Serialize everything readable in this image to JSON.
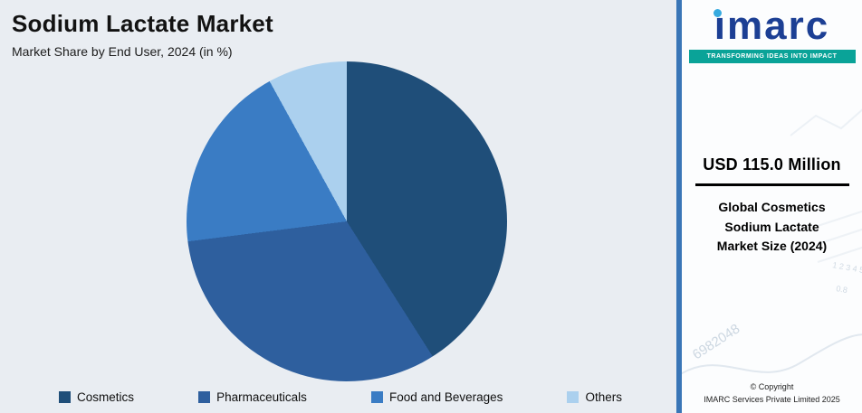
{
  "header": {
    "title": "Sodium Lactate Market",
    "subtitle": "Market Share by End User, 2024 (in %)"
  },
  "chart_data": {
    "type": "pie",
    "title": "Sodium Lactate Market",
    "subtitle": "Market Share by End User, 2024 (in %)",
    "categories": [
      "Cosmetics",
      "Pharmaceuticals",
      "Food and Beverages",
      "Others"
    ],
    "values": [
      41,
      32,
      19,
      8
    ],
    "unit": "%",
    "colors": [
      "#1f4e79",
      "#2e5f9e",
      "#3a7cc4",
      "#abd0ee"
    ],
    "start_angle": "top",
    "direction": "clockwise",
    "legend_position": "bottom"
  },
  "sidebar": {
    "logo_text": "imarc",
    "logo_tagline": "TRANSFORMING IDEAS INTO IMPACT",
    "metric_value": "USD 115.0 Million",
    "metric_label": "Global Cosmetics Sodium Lactate Market Size (2024)",
    "watermark": {
      "axis_numbers": "1 2 3 4 5",
      "axis_decimals": "0.8",
      "serial": "6982048"
    },
    "copyright_line1": "© Copyright",
    "copyright_line2": "IMARC Services Private Limited 2025"
  },
  "accent_colors": {
    "sidebar_strip": "#3a76b7",
    "tagline_bar": "#0aa398",
    "logo_blue": "#1c3f94",
    "logo_dot_cyan": "#36aadf",
    "panel_background": "#e9edf2"
  }
}
